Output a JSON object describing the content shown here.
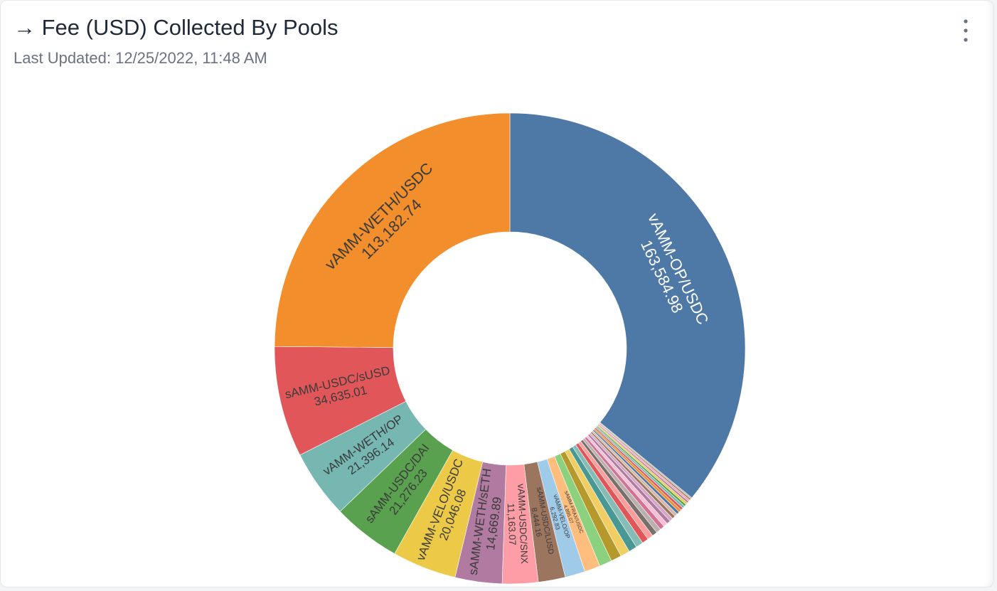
{
  "header": {
    "title": "Fee (USD) Collected By Pools",
    "subtitle": "Last Updated: 12/25/2022, 11:48 AM"
  },
  "chart_data": {
    "type": "donut",
    "categories": [
      "vAMM-OP/USDC",
      null,
      null,
      null,
      null,
      null,
      null,
      null,
      null,
      null,
      null,
      null,
      null,
      null,
      null,
      null,
      null,
      null,
      null,
      null,
      null,
      null,
      null,
      null,
      null,
      null,
      "sAMM-FRAX/USDC",
      "vAMM-VELO/OP",
      "sAMM-USDC/LUSD",
      "vAMM-USDC/SNX",
      "sAMM-WETH/sETH",
      "vAMM-VELO/USDC",
      "sAMM-USDC/DAI",
      "vAMM-WETH/OP",
      "sAMM-USDC/sUSD",
      "vAMM-WETH/USDC"
    ],
    "values": [
      163584.98,
      450,
      500,
      550,
      600,
      650,
      700,
      750,
      800,
      850,
      900,
      950,
      1000,
      1100,
      1200,
      1300,
      1400,
      1500,
      1600,
      1800,
      2000,
      2300,
      2600,
      2900,
      3300,
      3900,
      4895.07,
      6292.83,
      8444.16,
      11163.07,
      14669.89,
      20046.08,
      21276.23,
      21396.14,
      34635.01,
      113182.74
    ],
    "value_labels": [
      "163,584.98",
      null,
      null,
      null,
      null,
      null,
      null,
      null,
      null,
      null,
      null,
      null,
      null,
      null,
      null,
      null,
      null,
      null,
      null,
      null,
      null,
      null,
      null,
      null,
      null,
      null,
      "4,895.07",
      "6,292.83",
      "8,444.16",
      "11,163.07",
      "14,669.89",
      "20,046.08",
      "21,276.23",
      "21,396.14",
      "34,635.01",
      "113,182.74"
    ],
    "colors": [
      "#4e79a7",
      "#bab0ac",
      "#9c755f",
      "#ff9da7",
      "#b07aa1",
      "#edc948",
      "#59a14f",
      "#76b7b2",
      "#e15759",
      "#f28e2b",
      "#4e79a7",
      "#d7b5a6",
      "#9d7660",
      "#d4a6c8",
      "#b07aa1",
      "#fabfd2",
      "#d37295",
      "#bab0ac",
      "#79706e",
      "#ff9d9a",
      "#e15759",
      "#86bcb6",
      "#499894",
      "#f1ce63",
      "#b6992d",
      "#8cd17d",
      "#ffbe7d",
      "#a0cbe8",
      "#9c755f",
      "#ff9da7",
      "#b07aa1",
      "#edc948",
      "#59a14f",
      "#76b7b2",
      "#e15759",
      "#f28e2b"
    ]
  }
}
